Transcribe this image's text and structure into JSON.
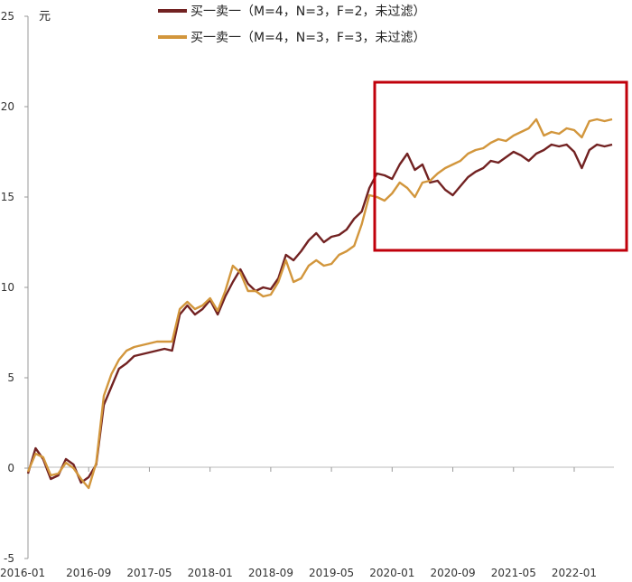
{
  "chart_data": {
    "type": "line",
    "unit_label": "元",
    "ylim": [
      -5,
      25
    ],
    "yticks": [
      -5,
      0,
      5,
      10,
      15,
      20,
      25
    ],
    "xtick_labels": [
      "2016-01",
      "2016-09",
      "2017-05",
      "2018-01",
      "2018-09",
      "2019-05",
      "2020-01",
      "2020-09",
      "2021-05",
      "2022-01"
    ],
    "legend_position": "top-center",
    "grid": false,
    "series": [
      {
        "name": "买一卖一（M=4，N=3，F=2，未过滤）",
        "color": "#722222",
        "x": [
          "2016-01",
          "2016-02",
          "2016-03",
          "2016-04",
          "2016-05",
          "2016-06",
          "2016-07",
          "2016-08",
          "2016-09",
          "2016-10",
          "2016-11",
          "2016-12",
          "2017-01",
          "2017-02",
          "2017-03",
          "2017-04",
          "2017-05",
          "2017-06",
          "2017-07",
          "2017-08",
          "2017-09",
          "2017-10",
          "2017-11",
          "2017-12",
          "2018-01",
          "2018-02",
          "2018-03",
          "2018-04",
          "2018-05",
          "2018-06",
          "2018-07",
          "2018-08",
          "2018-09",
          "2018-10",
          "2018-11",
          "2018-12",
          "2019-01",
          "2019-02",
          "2019-03",
          "2019-04",
          "2019-05",
          "2019-06",
          "2019-07",
          "2019-08",
          "2019-09",
          "2019-10",
          "2019-11",
          "2019-12",
          "2020-01",
          "2020-02",
          "2020-03",
          "2020-04",
          "2020-05",
          "2020-06",
          "2020-07",
          "2020-08",
          "2020-09",
          "2020-10",
          "2020-11",
          "2020-12",
          "2021-01",
          "2021-02",
          "2021-03",
          "2021-04",
          "2021-05",
          "2021-06",
          "2021-07",
          "2021-08",
          "2021-09",
          "2021-10",
          "2021-11",
          "2021-12",
          "2022-01",
          "2022-02",
          "2022-03",
          "2022-04",
          "2022-05",
          "2022-06"
        ],
        "values": [
          -0.3,
          1.1,
          0.5,
          -0.6,
          -0.4,
          0.5,
          0.2,
          -0.8,
          -0.5,
          0.2,
          3.5,
          4.5,
          5.5,
          5.8,
          6.2,
          6.3,
          6.4,
          6.5,
          6.6,
          6.5,
          8.5,
          9.0,
          8.5,
          8.8,
          9.3,
          8.5,
          9.5,
          10.3,
          11.0,
          10.2,
          9.8,
          10.0,
          9.9,
          10.5,
          11.8,
          11.5,
          12.0,
          12.6,
          13.0,
          12.5,
          12.8,
          12.9,
          13.2,
          13.8,
          14.2,
          15.5,
          16.3,
          16.2,
          16.0,
          16.8,
          17.4,
          16.5,
          16.8,
          15.8,
          15.9,
          15.4,
          15.1,
          15.6,
          16.1,
          16.4,
          16.6,
          17.0,
          16.9,
          17.2,
          17.5,
          17.3,
          17.0,
          17.4,
          17.6,
          17.9,
          17.8,
          17.9,
          17.5,
          16.6,
          17.6,
          17.9,
          17.8,
          17.9
        ]
      },
      {
        "name": "买一卖一（M=4，N=3，F=3，未过滤）",
        "color": "#D2963C",
        "x": [
          "2016-01",
          "2016-02",
          "2016-03",
          "2016-04",
          "2016-05",
          "2016-06",
          "2016-07",
          "2016-08",
          "2016-09",
          "2016-10",
          "2016-11",
          "2016-12",
          "2017-01",
          "2017-02",
          "2017-03",
          "2017-04",
          "2017-05",
          "2017-06",
          "2017-07",
          "2017-08",
          "2017-09",
          "2017-10",
          "2017-11",
          "2017-12",
          "2018-01",
          "2018-02",
          "2018-03",
          "2018-04",
          "2018-05",
          "2018-06",
          "2018-07",
          "2018-08",
          "2018-09",
          "2018-10",
          "2018-11",
          "2018-12",
          "2019-01",
          "2019-02",
          "2019-03",
          "2019-04",
          "2019-05",
          "2019-06",
          "2019-07",
          "2019-08",
          "2019-09",
          "2019-10",
          "2019-11",
          "2019-12",
          "2020-01",
          "2020-02",
          "2020-03",
          "2020-04",
          "2020-05",
          "2020-06",
          "2020-07",
          "2020-08",
          "2020-09",
          "2020-10",
          "2020-11",
          "2020-12",
          "2021-01",
          "2021-02",
          "2021-03",
          "2021-04",
          "2021-05",
          "2021-06",
          "2021-07",
          "2021-08",
          "2021-09",
          "2021-10",
          "2021-11",
          "2021-12",
          "2022-01",
          "2022-02",
          "2022-03",
          "2022-04",
          "2022-05",
          "2022-06"
        ],
        "values": [
          -0.2,
          0.8,
          0.6,
          -0.4,
          -0.3,
          0.3,
          0.0,
          -0.6,
          -1.1,
          0.3,
          4.0,
          5.2,
          6.0,
          6.5,
          6.7,
          6.8,
          6.9,
          7.0,
          7.0,
          7.0,
          8.8,
          9.2,
          8.8,
          9.0,
          9.4,
          8.7,
          9.8,
          11.2,
          10.8,
          9.8,
          9.8,
          9.5,
          9.6,
          10.3,
          11.5,
          10.3,
          10.5,
          11.2,
          11.5,
          11.2,
          11.3,
          11.8,
          12.0,
          12.3,
          13.5,
          15.1,
          15.0,
          14.8,
          15.2,
          15.8,
          15.5,
          15.0,
          15.8,
          15.9,
          16.3,
          16.6,
          16.8,
          17.0,
          17.4,
          17.6,
          17.7,
          18.0,
          18.2,
          18.1,
          18.4,
          18.6,
          18.8,
          19.3,
          18.4,
          18.6,
          18.5,
          18.8,
          18.7,
          18.3,
          19.2,
          19.3,
          19.2,
          19.3
        ]
      }
    ],
    "annotation": {
      "type": "highlight-box",
      "color": "#C0000B",
      "x_range": [
        "2020-01",
        "2022-06"
      ]
    }
  }
}
